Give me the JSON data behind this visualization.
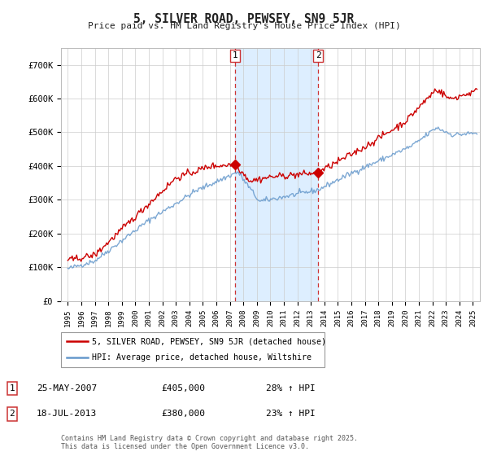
{
  "title": "5, SILVER ROAD, PEWSEY, SN9 5JR",
  "subtitle": "Price paid vs. HM Land Registry's House Price Index (HPI)",
  "ylim": [
    0,
    750000
  ],
  "yticks": [
    0,
    100000,
    200000,
    300000,
    400000,
    500000,
    600000,
    700000
  ],
  "ytick_labels": [
    "£0",
    "£100K",
    "£200K",
    "£300K",
    "£400K",
    "£500K",
    "£600K",
    "£700K"
  ],
  "hpi_color": "#6699cc",
  "price_color": "#cc0000",
  "marker1_x": 2007.388,
  "marker1_y": 405000,
  "marker2_x": 2013.542,
  "marker2_y": 380000,
  "annotation1": [
    "1",
    "25-MAY-2007",
    "£405,000",
    "28% ↑ HPI"
  ],
  "annotation2": [
    "2",
    "18-JUL-2013",
    "£380,000",
    "23% ↑ HPI"
  ],
  "legend1": "5, SILVER ROAD, PEWSEY, SN9 5JR (detached house)",
  "legend2": "HPI: Average price, detached house, Wiltshire",
  "footnote": "Contains HM Land Registry data © Crown copyright and database right 2025.\nThis data is licensed under the Open Government Licence v3.0.",
  "background_color": "#ffffff",
  "plot_bg_color": "#ffffff",
  "shade_color": "#ddeeff",
  "xmin": 1994.5,
  "xmax": 2025.5
}
